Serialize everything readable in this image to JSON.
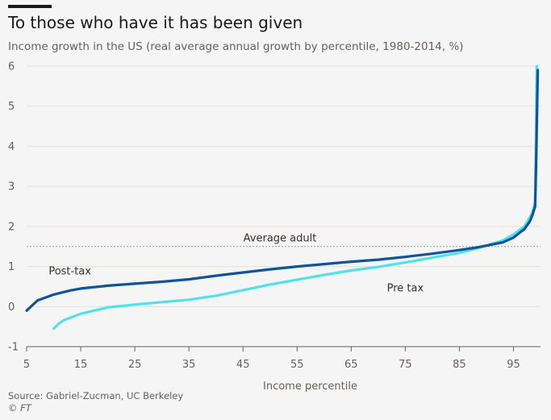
{
  "header": {
    "title": "To those who have it has been given",
    "subtitle": "Income growth in the US (real average annual growth by percentile, 1980-2014, %)"
  },
  "footer": {
    "source": "Source: Gabriel-Zucman, UC Berkeley",
    "credit": "© FT"
  },
  "colors": {
    "post_tax": "#0f5499",
    "pre_tax": "#4fe3e8",
    "grid": "#e3dfdb",
    "reference": "#999999"
  },
  "chart_data": {
    "type": "line",
    "title": "To those who have it has been given",
    "subtitle": "Income growth in the US (real average annual growth by percentile, 1980-2014, %)",
    "xlabel": "Income percentile",
    "ylabel": "",
    "xlim": [
      5,
      100
    ],
    "ylim": [
      -1,
      6
    ],
    "x_ticks": [
      5,
      15,
      25,
      35,
      45,
      55,
      65,
      75,
      85,
      95
    ],
    "y_ticks": [
      -1,
      0,
      1,
      2,
      3,
      4,
      5,
      6
    ],
    "grid": true,
    "reference_line": {
      "label": "Average adult",
      "value": 1.5
    },
    "annotations": [
      {
        "text": "Post-tax",
        "series": "Post-tax"
      },
      {
        "text": "Pre tax",
        "series": "Pre tax"
      }
    ],
    "series": [
      {
        "name": "Post-tax",
        "x": [
          5,
          7,
          10,
          13,
          15,
          20,
          25,
          30,
          35,
          40,
          45,
          50,
          55,
          60,
          65,
          70,
          75,
          80,
          85,
          88,
          90,
          93,
          95,
          97,
          98,
          98.5,
          99,
          99.2,
          99.5
        ],
        "y": [
          -0.1,
          0.15,
          0.3,
          0.4,
          0.45,
          0.52,
          0.57,
          0.62,
          0.68,
          0.77,
          0.85,
          0.93,
          1.0,
          1.06,
          1.12,
          1.17,
          1.24,
          1.32,
          1.41,
          1.47,
          1.52,
          1.6,
          1.72,
          1.93,
          2.12,
          2.28,
          2.5,
          3.6,
          5.9
        ]
      },
      {
        "name": "Pre tax",
        "x": [
          10,
          11,
          12,
          15,
          20,
          25,
          30,
          35,
          40,
          45,
          50,
          55,
          60,
          65,
          70,
          75,
          80,
          85,
          88,
          90,
          93,
          95,
          97,
          98,
          98.5,
          99,
          99.2,
          99.3
        ],
        "y": [
          -0.55,
          -0.42,
          -0.33,
          -0.18,
          -0.02,
          0.05,
          0.11,
          0.17,
          0.27,
          0.41,
          0.55,
          0.67,
          0.79,
          0.9,
          0.99,
          1.1,
          1.22,
          1.34,
          1.44,
          1.52,
          1.65,
          1.8,
          2.0,
          2.22,
          2.35,
          2.6,
          4.5,
          6.0
        ]
      }
    ]
  }
}
